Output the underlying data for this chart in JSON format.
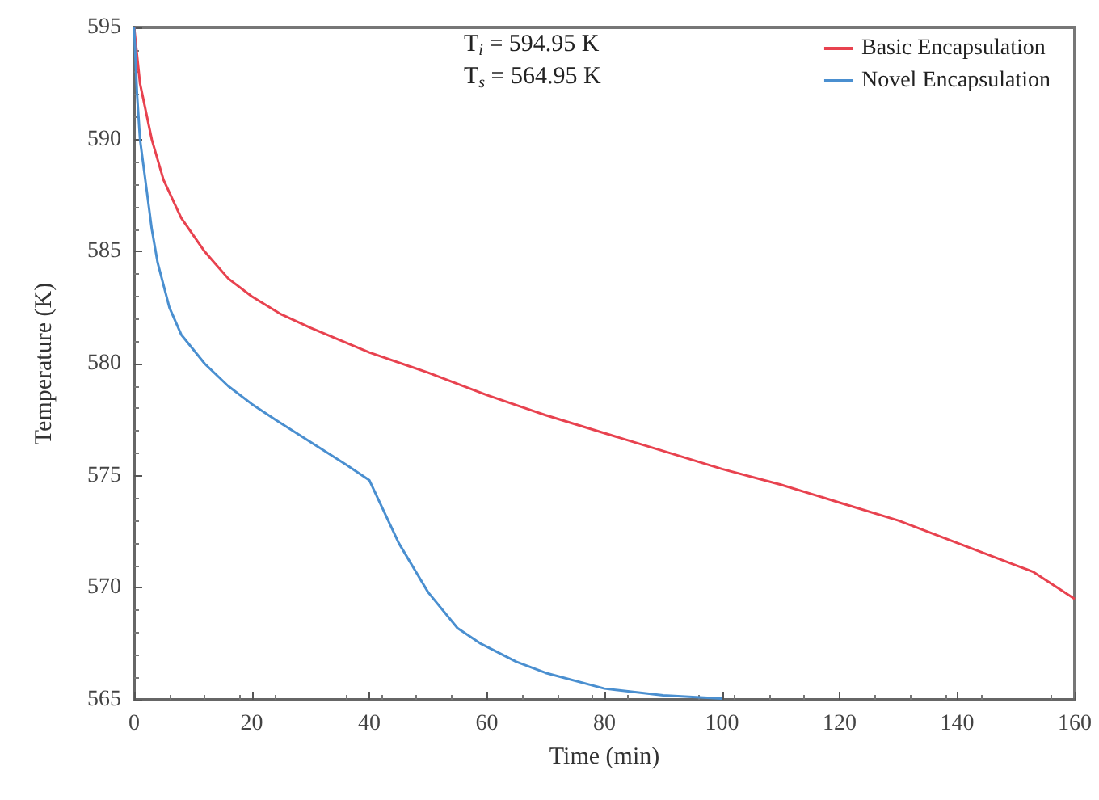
{
  "chart_data": {
    "type": "line",
    "xlabel": "Time (min)",
    "ylabel": "Temperature (K)",
    "xlim": [
      0,
      160
    ],
    "xticks": [
      0,
      20,
      40,
      60,
      80,
      100,
      120,
      140,
      160
    ],
    "ylim": [
      565,
      595
    ],
    "yticks": [
      565,
      570,
      575,
      580,
      585,
      590,
      595
    ],
    "grid": false,
    "legend": "top right",
    "marker": "none",
    "line_style": "solid",
    "annotations": [
      "T$_{i}$ = 594.95 K",
      "T$_{s}$ = 564.95 K"
    ],
    "series": [
      {
        "name": "Basic Encapsulation",
        "color": "#e8424f",
        "x": [
          0,
          1,
          3,
          5,
          8,
          12,
          16,
          20,
          25,
          30,
          40,
          50,
          60,
          70,
          80,
          90,
          100,
          110,
          120,
          130,
          140,
          150,
          153,
          160
        ],
        "values": [
          595,
          592.5,
          590,
          588.2,
          586.5,
          585,
          583.8,
          583,
          582.2,
          581.6,
          580.5,
          579.6,
          578.6,
          577.7,
          576.9,
          576.1,
          575.3,
          574.6,
          573.8,
          573,
          572,
          571,
          570.7,
          569.5
        ]
      },
      {
        "name": "Novel Encapsulation",
        "color": "#4a8fd0",
        "x": [
          0,
          0.5,
          1,
          2,
          3,
          4,
          6,
          8,
          12,
          16,
          20,
          24,
          30,
          36,
          40,
          45,
          50,
          55,
          59,
          65,
          70,
          80,
          90,
          100
        ],
        "values": [
          595,
          592,
          590,
          588,
          586,
          584.5,
          582.5,
          581.3,
          580,
          579,
          578.2,
          577.5,
          576.5,
          575.5,
          574.8,
          572,
          569.8,
          568.2,
          567.5,
          566.7,
          566.2,
          565.5,
          565.2,
          565.05
        ]
      }
    ]
  }
}
